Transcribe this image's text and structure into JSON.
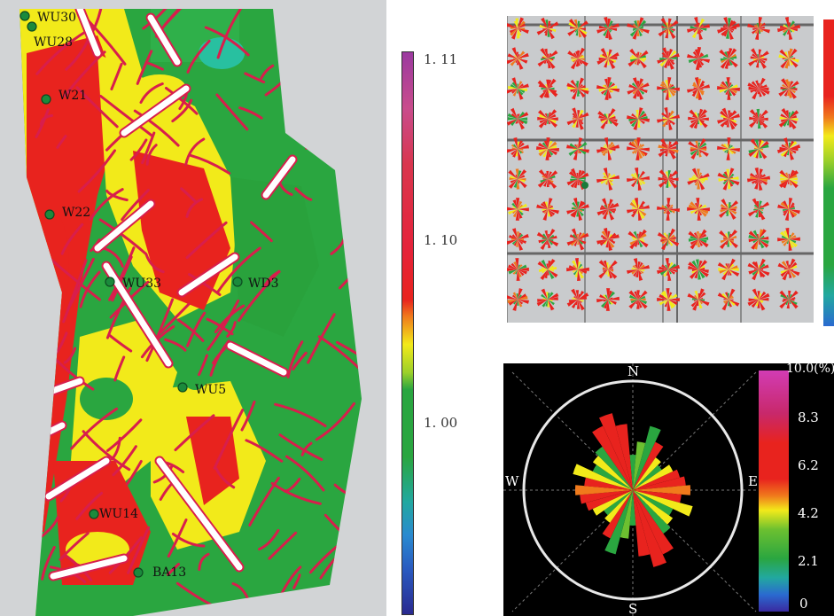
{
  "attribute_map": {
    "wells": [
      {
        "id": "w-wu30",
        "name": "WU30"
      },
      {
        "id": "w-wu28",
        "name": "WU28"
      },
      {
        "id": "w-w21",
        "name": "W21"
      },
      {
        "id": "w-w22",
        "name": "W22"
      },
      {
        "id": "w-wu33",
        "name": "WU33"
      },
      {
        "id": "w-wd3",
        "name": "WD3"
      },
      {
        "id": "w-wu5",
        "name": "WU5"
      },
      {
        "id": "w-wu14",
        "name": "WU14"
      },
      {
        "id": "w-ba13",
        "name": "BA13"
      }
    ],
    "colorbar_ticks": [
      "1. 11",
      "1. 10",
      "1. 00"
    ]
  },
  "rose_diagram": {
    "compass": {
      "north": "N",
      "south": "S",
      "east": "E",
      "west": "W"
    },
    "colorbar_ticks": [
      "10.0(%)",
      "8.3",
      "6.2",
      "4.2",
      "2.1",
      "0"
    ]
  },
  "colors": {
    "map_bg": "#d2d4d6",
    "green": "#2aa640",
    "yellow": "#f2ea1a",
    "red": "#e8231e",
    "fault_fill": "#ffffff",
    "fault_edge": "#d81e4c"
  }
}
